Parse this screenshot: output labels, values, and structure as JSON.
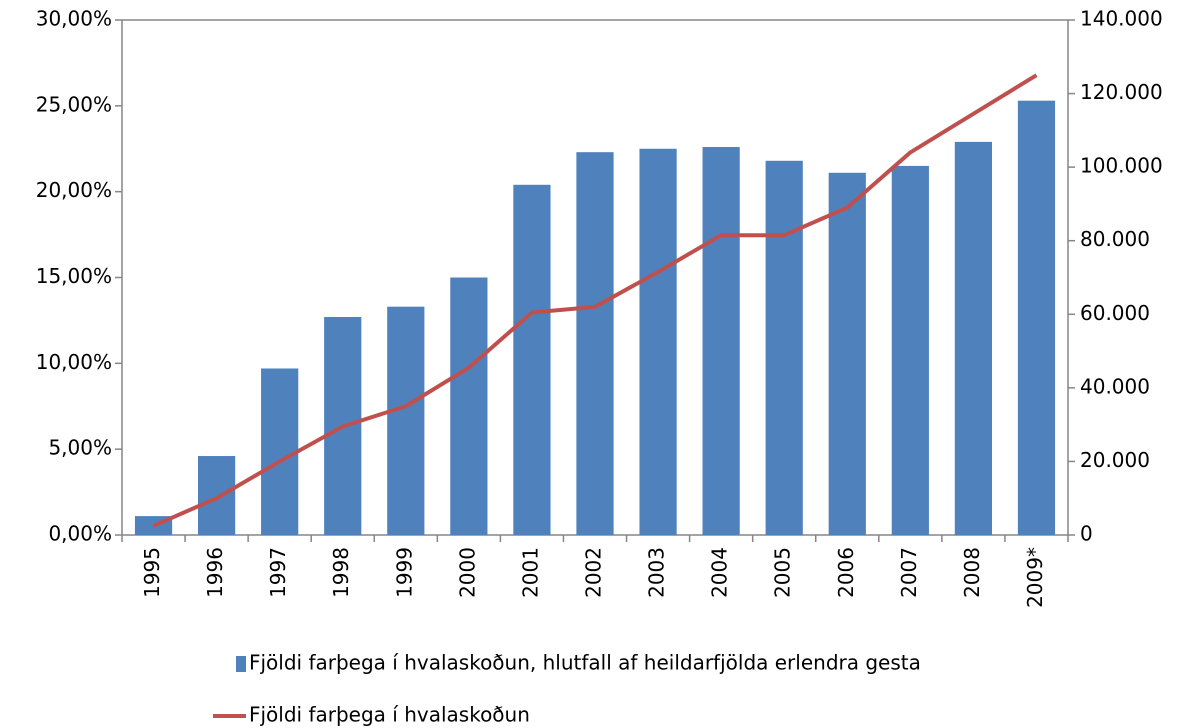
{
  "chart_data": {
    "type": "bar-line",
    "categories": [
      "1995",
      "1996",
      "1997",
      "1998",
      "1999",
      "2000",
      "2001",
      "2002",
      "2003",
      "2004",
      "2005",
      "2006",
      "2007",
      "2008",
      "2009*"
    ],
    "series": [
      {
        "name": "Fjöldi farþega í hvalaskoðun, hlutfall af heildarfjölda erlendra gesta",
        "type": "bar",
        "color": "#4f81bd",
        "values": [
          1.1,
          4.6,
          9.7,
          12.7,
          13.3,
          15.0,
          20.4,
          22.3,
          22.5,
          22.6,
          21.8,
          21.1,
          21.5,
          22.9,
          25.3
        ]
      },
      {
        "name": "Fjöldi farþega í hvalaskoðun",
        "type": "line",
        "color": "#c0504d",
        "axis": "y2",
        "values": [
          2500,
          10000,
          20000,
          29500,
          35000,
          45500,
          60500,
          62000,
          71500,
          81500,
          81500,
          89000,
          104000,
          114500,
          125000
        ]
      }
    ],
    "ylim": [
      0,
      30
    ],
    "yticks": [
      {
        "value": 0,
        "label": "0,00%"
      },
      {
        "value": 5,
        "label": "5,00%"
      },
      {
        "value": 10,
        "label": "10,00%"
      },
      {
        "value": 15,
        "label": "15,00%"
      },
      {
        "value": 20,
        "label": "20,00%"
      },
      {
        "value": 25,
        "label": "25,00%"
      },
      {
        "value": 30,
        "label": "30,00%"
      }
    ],
    "y2lim": [
      0,
      140000
    ],
    "y2ticks": [
      0,
      {
        "value": 20000,
        "label": "20.000"
      },
      {
        "value": 40000,
        "label": "40.000"
      },
      {
        "value": 60000,
        "label": "60.000"
      },
      {
        "value": 80000,
        "label": "80.000"
      },
      {
        "value": 100000,
        "label": "100.000"
      },
      {
        "value": 120000,
        "label": "120.000"
      },
      {
        "value": 140000,
        "label": "140.000"
      }
    ],
    "grid": false,
    "legend": "bottom"
  }
}
